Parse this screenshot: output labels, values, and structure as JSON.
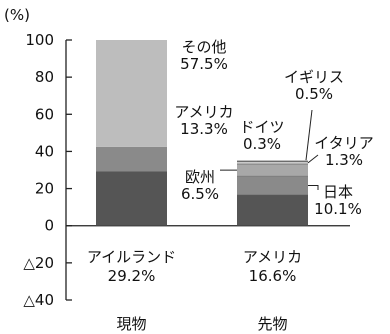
{
  "chart_data": {
    "type": "bar",
    "stacked": true,
    "unit_label": "(%)",
    "ylim": [
      -40,
      100
    ],
    "y_ticks": [
      100,
      80,
      60,
      40,
      20,
      0,
      -20,
      -40
    ],
    "y_tick_labels": [
      "100",
      "80",
      "60",
      "40",
      "20",
      "0",
      "△20",
      "△40"
    ],
    "bars": [
      {
        "category": "現物",
        "total_label": "アイルランド",
        "total_value": "29.2%",
        "segments": [
          {
            "name": "アイルランド",
            "value": 29.2,
            "color": "#555555"
          },
          {
            "name": "アメリカ",
            "value": 13.3,
            "color": "#8a8a8a",
            "label": "アメリカ",
            "value_label": "13.3%"
          },
          {
            "name": "その他",
            "value": 57.5,
            "color": "#bdbdbd",
            "label": "その他",
            "value_label": "57.5%"
          }
        ]
      },
      {
        "category": "先物",
        "total_label": "アメリカ",
        "total_value": "16.6%",
        "segments": [
          {
            "name": "アメリカ",
            "value": 16.6,
            "color": "#555555"
          },
          {
            "name": "日本",
            "value": 10.1,
            "color": "#8a8a8a",
            "label": "日本",
            "value_label": "10.1%"
          },
          {
            "name": "欧州",
            "value": 6.5,
            "color": "#a8a8a8",
            "label": "欧州",
            "value_label": "6.5%"
          },
          {
            "name": "イタリア",
            "value": 1.3,
            "color": "#c9c9c9",
            "label": "イタリア",
            "value_label": "1.3%"
          },
          {
            "name": "ドイツ",
            "value": 0.3,
            "color": "#999999",
            "label": "ドイツ",
            "value_label": "0.3%"
          },
          {
            "name": "イギリス",
            "value": 0.5,
            "color": "#d6d6d6",
            "label": "イギリス",
            "value_label": "0.5%"
          }
        ]
      }
    ]
  }
}
